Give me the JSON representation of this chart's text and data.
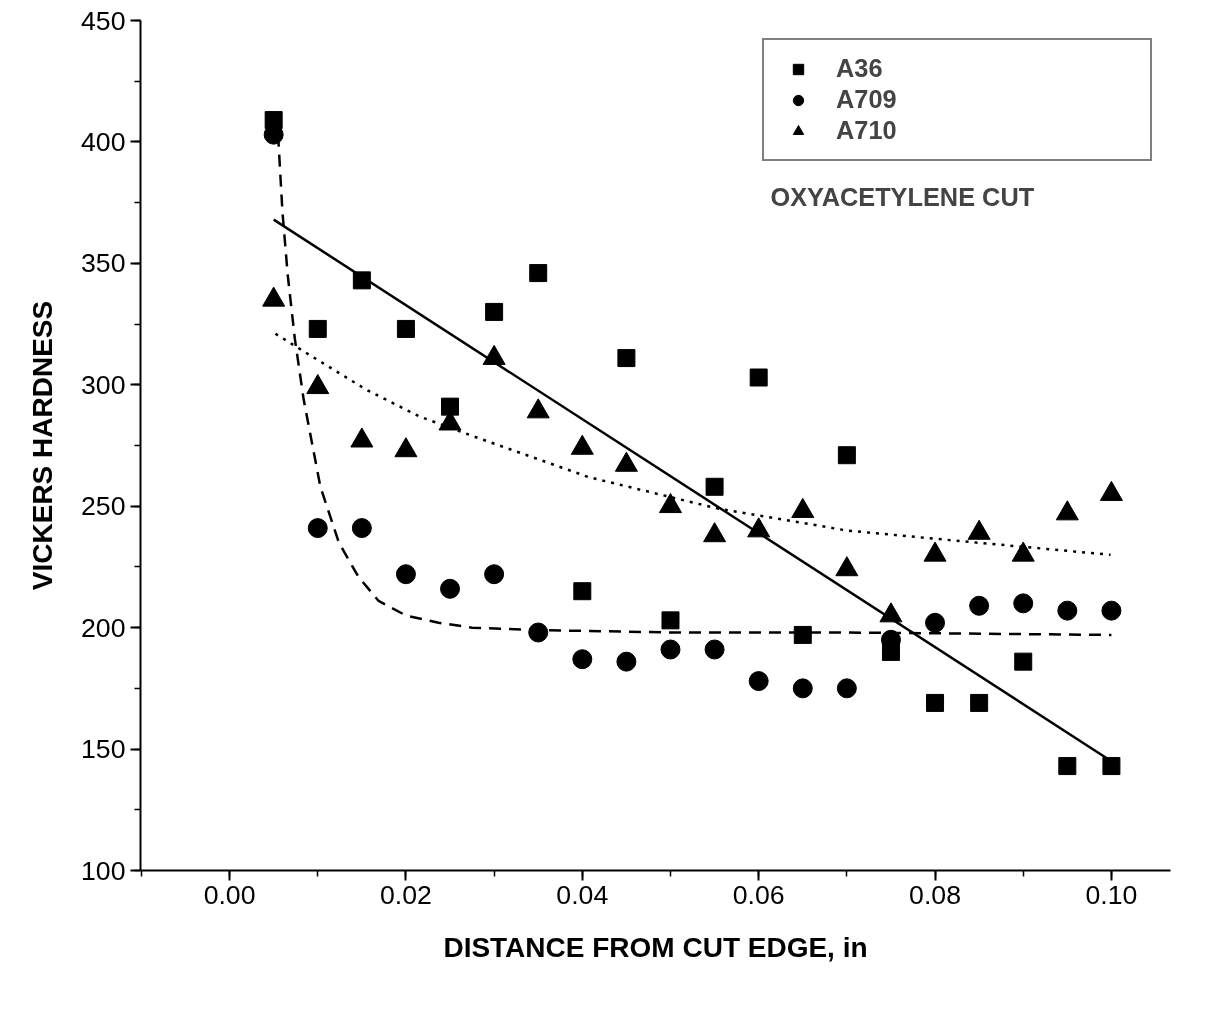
{
  "chart_data": {
    "type": "scatter",
    "xlabel": "DISTANCE FROM CUT EDGE, in",
    "ylabel": "VICKERS HARDNESS",
    "x": [
      0.005,
      0.01,
      0.015,
      0.02,
      0.025,
      0.03,
      0.035,
      0.04,
      0.045,
      0.05,
      0.055,
      0.06,
      0.065,
      0.07,
      0.075,
      0.08,
      0.085,
      0.09,
      0.095,
      0.1
    ],
    "series": [
      {
        "name": "A36",
        "color": "#000000",
        "marker": "square",
        "values": [
          409,
          323,
          343,
          323,
          291,
          330,
          346,
          215,
          311,
          203,
          258,
          303,
          197,
          271,
          190,
          169,
          169,
          186,
          143,
          143
        ]
      },
      {
        "name": "A709",
        "color": "#000000",
        "marker": "circle",
        "values": [
          403,
          241,
          241,
          222,
          216,
          222,
          198,
          187,
          186,
          191,
          191,
          178,
          175,
          175,
          195,
          202,
          209,
          210,
          207,
          207
        ]
      },
      {
        "name": "A710",
        "color": "#000000",
        "marker": "triangle",
        "values": [
          335,
          299,
          277,
          273,
          284,
          311,
          289,
          274,
          267,
          250,
          238,
          240,
          248,
          224,
          205,
          230,
          239,
          230,
          247,
          255
        ]
      },
      {
        "type": "line",
        "color": "#000000",
        "line_style": "solid",
        "x": [
          0.005,
          0.1
        ],
        "values": [
          368,
          145
        ]
      },
      {
        "type": "line",
        "color": "#000000",
        "line_style": "dashed",
        "x": [
          0.0055,
          0.006,
          0.0066,
          0.0074,
          0.0084,
          0.0103,
          0.0124,
          0.0146,
          0.0169,
          0.02,
          0.0237,
          0.0275,
          0.035,
          0.05,
          0.07,
          0.1
        ],
        "values": [
          403,
          371,
          345,
          319,
          294,
          258,
          235,
          221,
          211,
          205,
          202,
          200,
          199,
          198,
          198,
          197
        ]
      },
      {
        "type": "line",
        "color": "#000000",
        "line_style": "dotted",
        "x": [
          0.0052,
          0.0092,
          0.0155,
          0.0215,
          0.0275,
          0.0407,
          0.0554,
          0.07,
          0.0848,
          0.0999
        ],
        "values": [
          321,
          312,
          298,
          287,
          279,
          262,
          249,
          240,
          235,
          230
        ]
      }
    ],
    "xlim": [
      -0.0101,
      0.1067
    ],
    "ylim": [
      100,
      450
    ],
    "xticks": [
      {
        "value": 0,
        "label": "0.00"
      },
      {
        "value": 0.02,
        "label": "0.02"
      },
      {
        "value": 0.04,
        "label": "0.04"
      },
      {
        "value": 0.06,
        "label": "0.06"
      },
      {
        "value": 0.08,
        "label": "0.08"
      },
      {
        "value": 0.1,
        "label": "0.10"
      }
    ],
    "yticks": [
      100,
      150,
      200,
      250,
      300,
      350,
      400,
      450
    ],
    "grid": false,
    "legend": "top right",
    "annotations": [
      "OXYACETYLENE CUT"
    ]
  }
}
